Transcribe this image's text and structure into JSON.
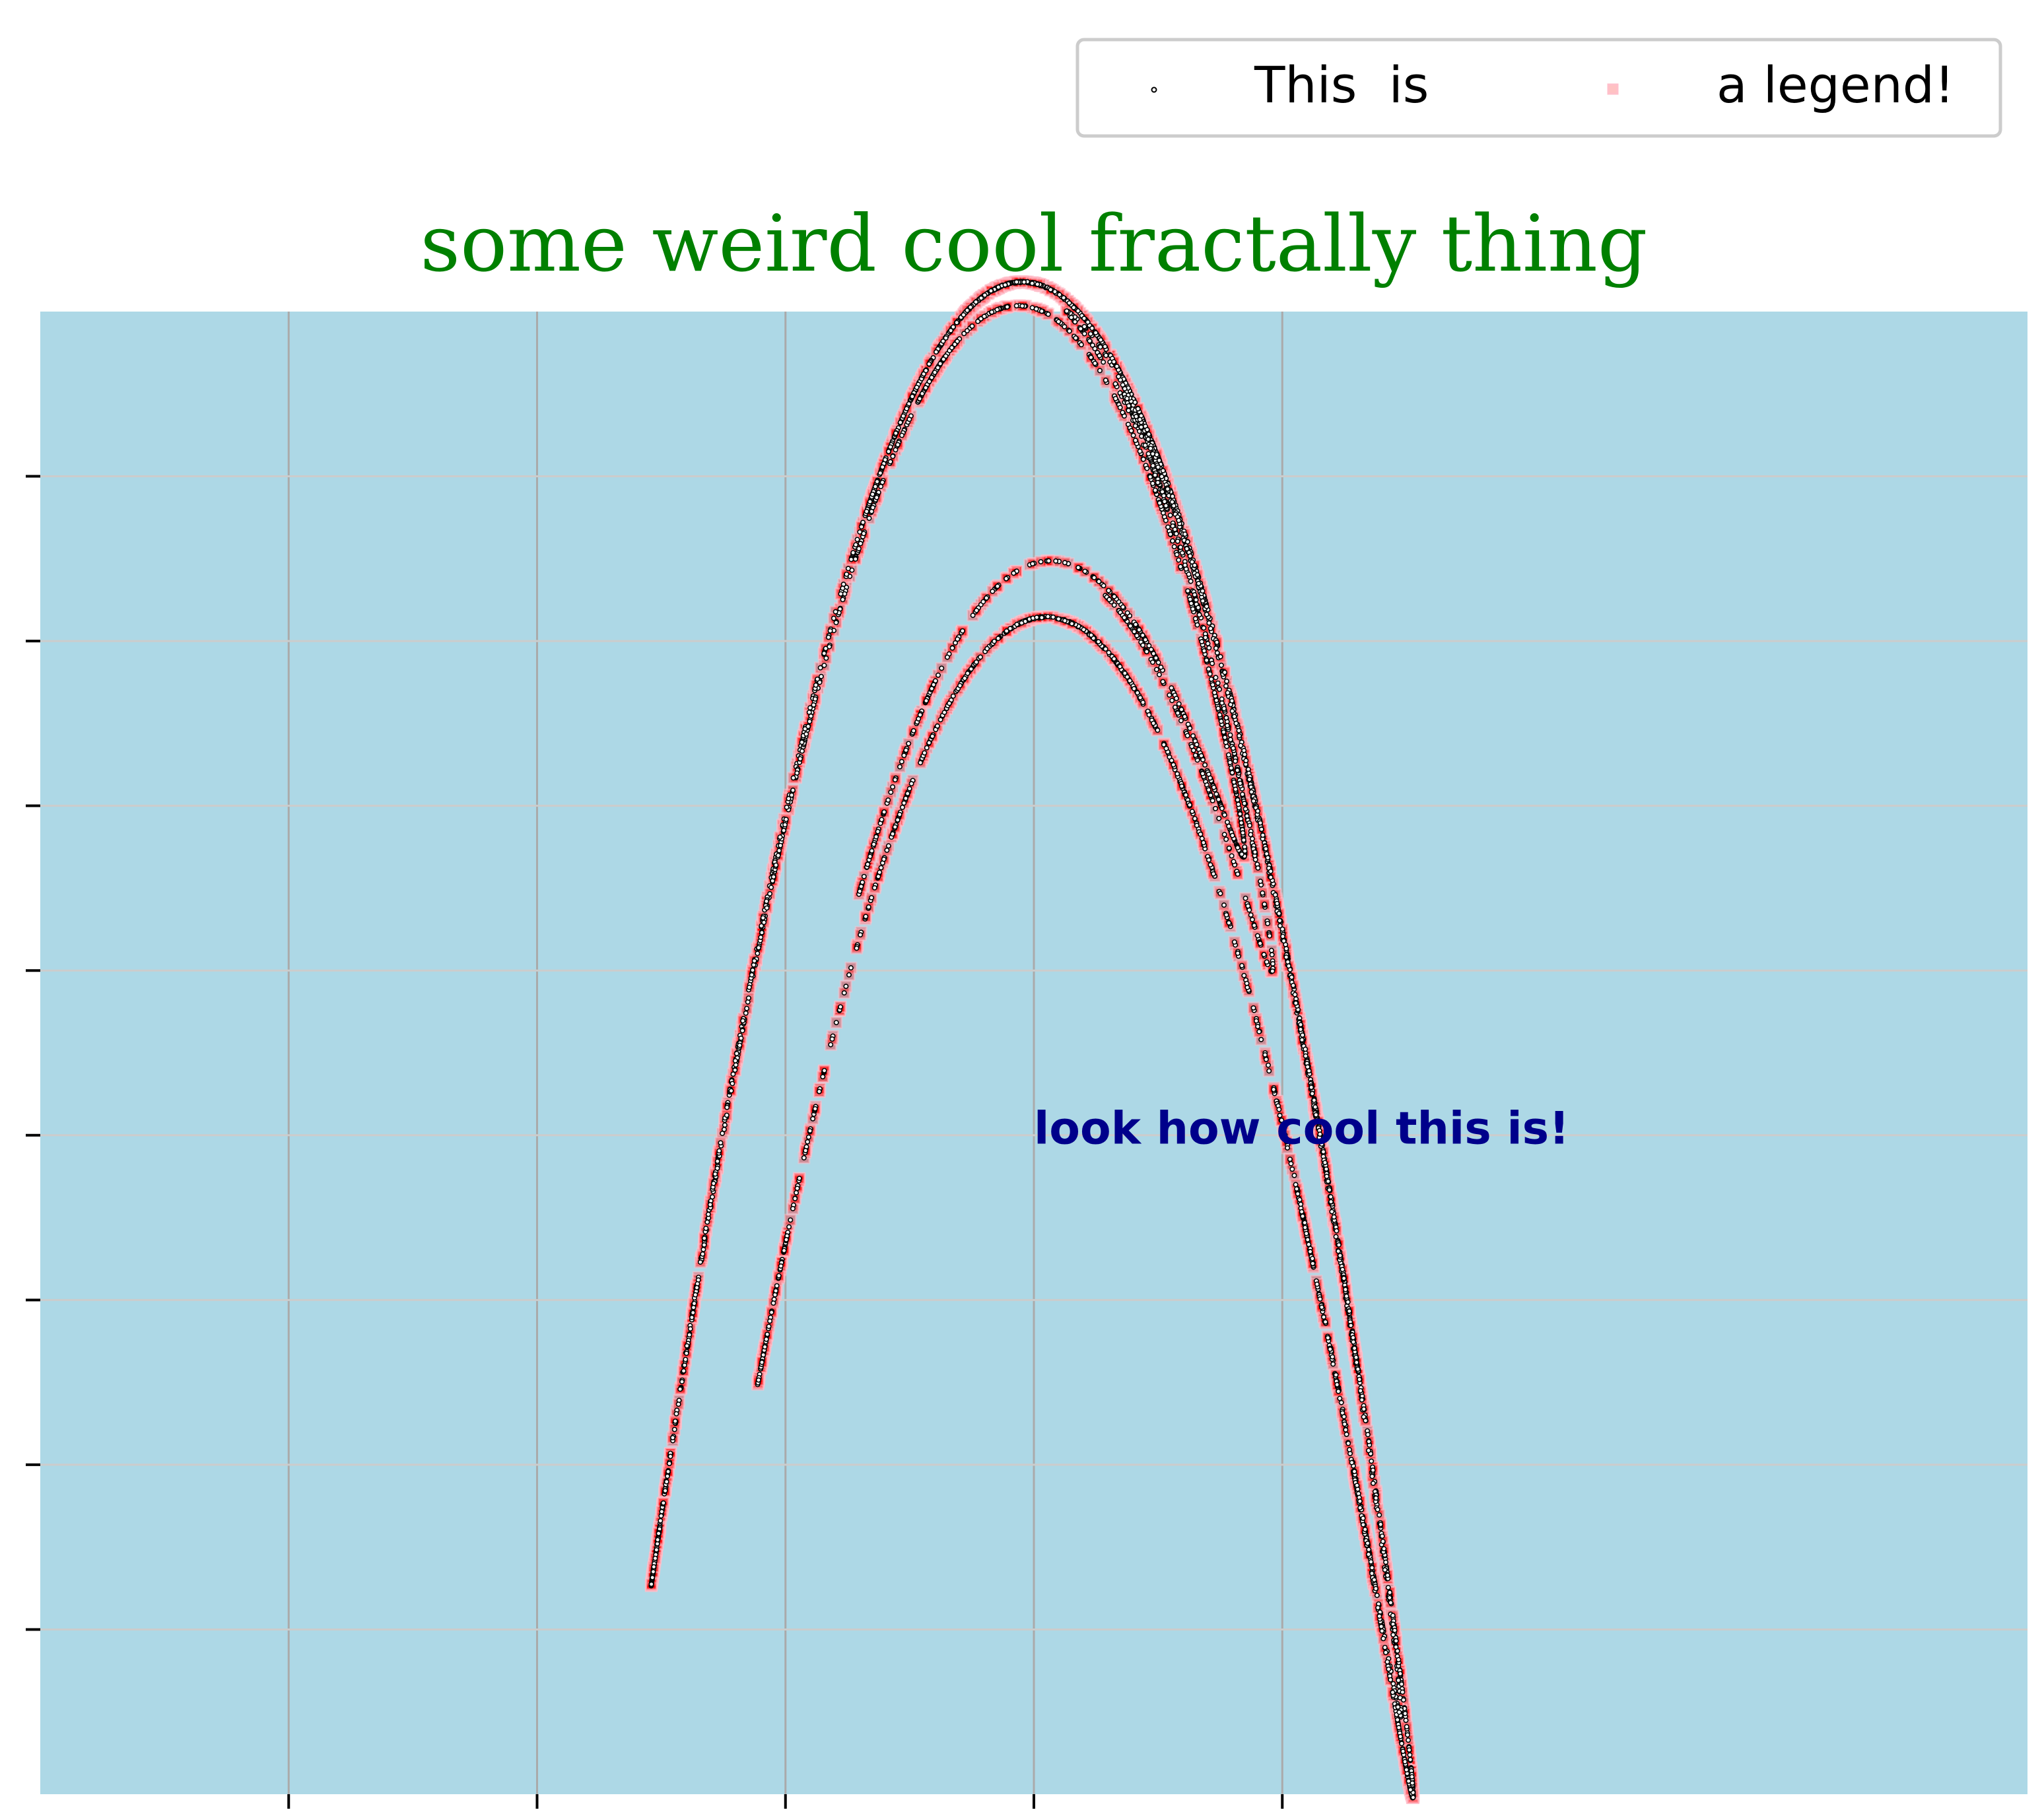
{
  "chart_data": {
    "type": "scatter",
    "title": "some weird cool fractally thing",
    "xlabel": "",
    "ylabel": "",
    "xlim": [
      -1.0,
      1.0
    ],
    "ylim": [
      -0.1,
      0.8
    ],
    "x_ticks": [
      -0.75,
      -0.5,
      -0.25,
      0.0,
      0.25
    ],
    "y_ticks": [
      0.0,
      0.1,
      0.2,
      0.3,
      0.4,
      0.5,
      0.6,
      0.7
    ],
    "tick_labels_visible": false,
    "grid": true,
    "background_color": "#add8e6",
    "legend": {
      "placement": "above-right",
      "columns": 2,
      "entries": [
        "This  is",
        "a legend!"
      ]
    },
    "annotation": {
      "text": "look how cool this is!",
      "color": "#00008b",
      "x": 0.0,
      "y": 0.295
    },
    "series": [
      {
        "name": "This  is",
        "marker": "circle",
        "face_color": "#ffffff",
        "edge_color": "#000000",
        "attractor": {
          "map": "henon",
          "a": 1.4,
          "b": 0.3,
          "count": 4500,
          "x0": 0.1,
          "y0": 0.1
        }
      },
      {
        "name": "a legend!",
        "marker": "square",
        "face_color": "#ff0000",
        "edge_color": "#ffc0cb",
        "attractor": {
          "map": "henon",
          "a": 1.4,
          "b": 0.3,
          "count": 4500,
          "x0": 0.1,
          "y0": 0.1
        }
      }
    ]
  }
}
